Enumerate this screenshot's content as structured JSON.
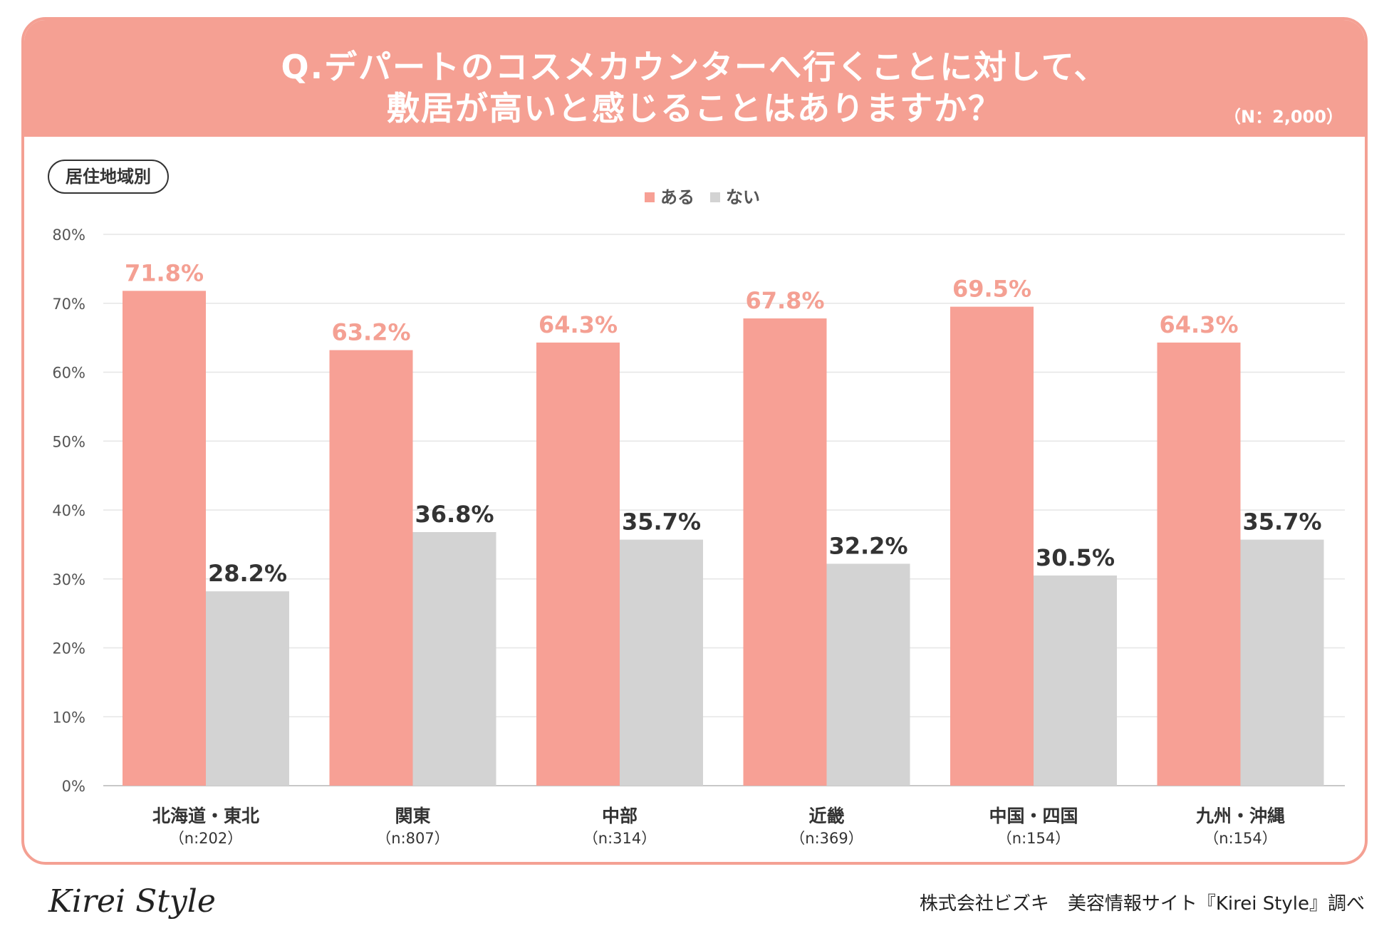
{
  "header": {
    "title_line1": "Q.デパートのコスメカウンターへ行くことに対して、",
    "title_line2": "敷居が高いと感じることはありますか？",
    "sample": "（N：2,000）"
  },
  "badge": "居住地域別",
  "colors": {
    "aru": "#f7a095",
    "nai": "#d3d3d3",
    "header": "#f5a093",
    "aru_label": "#f4a093",
    "nai_label": "#333333"
  },
  "chart_data": {
    "type": "bar",
    "categories": [
      "北海道・東北",
      "関東",
      "中部",
      "近畿",
      "中国・四国",
      "九州・沖縄"
    ],
    "category_n": [
      "（n:202）",
      "（n:807）",
      "（n:314）",
      "（n:369）",
      "（n:154）",
      "（n:154）"
    ],
    "series": [
      {
        "name": "ある",
        "values": [
          71.8,
          63.2,
          64.3,
          67.8,
          69.5,
          64.3
        ],
        "labels": [
          "71.8%",
          "63.2%",
          "64.3%",
          "67.8%",
          "69.5%",
          "64.3%"
        ]
      },
      {
        "name": "ない",
        "values": [
          28.2,
          36.8,
          35.7,
          32.2,
          30.5,
          35.7
        ],
        "labels": [
          "28.2%",
          "36.8%",
          "35.7%",
          "32.2%",
          "30.5%",
          "35.7%"
        ]
      }
    ],
    "ylim": [
      0,
      80
    ],
    "yticks": [
      "0%",
      "10%",
      "20%",
      "30%",
      "40%",
      "50%",
      "60%",
      "70%",
      "80%"
    ],
    "legend_position": "top-center",
    "grid": true
  },
  "footer": {
    "logo": "Kirei Style",
    "credit": "株式会社ビズキ　美容情報サイト『Kirei Style』調べ"
  }
}
